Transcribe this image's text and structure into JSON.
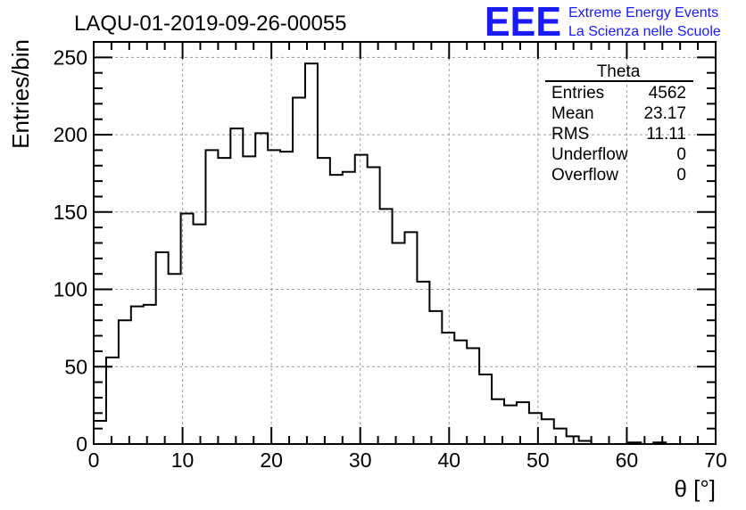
{
  "logo": {
    "mark": "EEE",
    "line1": "Extreme Energy Events",
    "line2": "La Scienza nelle Scuole"
  },
  "colors": {
    "logo": "#1a1aff",
    "grid": "#9a9a9a",
    "line": "#000000"
  },
  "chart_data": {
    "type": "bar",
    "title": "LAQU-01-2019-09-26-00055",
    "xlabel": "θ [°]",
    "ylabel": "Entries/bin",
    "xlim": [
      0,
      70
    ],
    "ylim": [
      0,
      260
    ],
    "bin_width": 1.4,
    "xticks": [
      0,
      10,
      20,
      30,
      40,
      50,
      60,
      70
    ],
    "yticks": [
      0,
      50,
      100,
      150,
      200,
      250
    ],
    "grid": true,
    "values": [
      15,
      56,
      80,
      89,
      90,
      124,
      110,
      149,
      142,
      190,
      185,
      204,
      186,
      201,
      190,
      189,
      224,
      246,
      185,
      174,
      176,
      187,
      179,
      152,
      130,
      137,
      105,
      86,
      72,
      67,
      62,
      45,
      29,
      25,
      27,
      20,
      16,
      10,
      5,
      2,
      0,
      0,
      0,
      1,
      0,
      1,
      0,
      0,
      0,
      0
    ],
    "stats": {
      "name": "Theta",
      "rows": [
        {
          "label": "Entries",
          "value": "4562"
        },
        {
          "label": "Mean",
          "value": "23.17"
        },
        {
          "label": "RMS",
          "value": "11.11"
        },
        {
          "label": "Underflow",
          "value": "0"
        },
        {
          "label": "Overflow",
          "value": "0"
        }
      ]
    }
  }
}
